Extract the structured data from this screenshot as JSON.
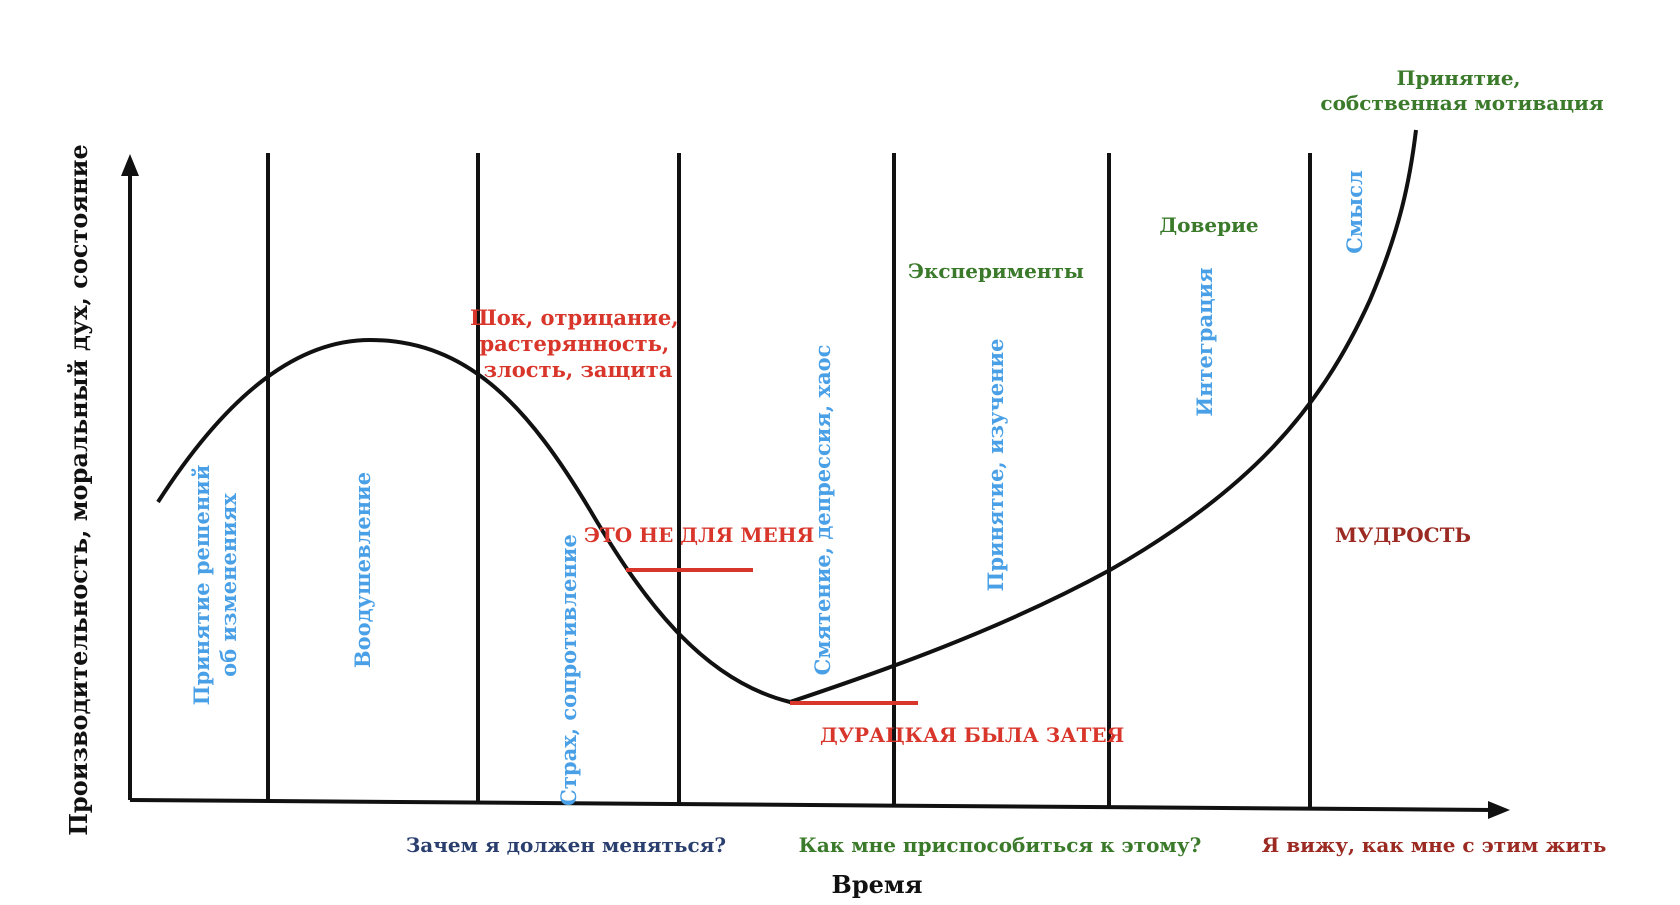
{
  "colors": {
    "blue": "#4aa0e6",
    "green": "#3a7a2a",
    "red": "#d9362b",
    "dark_red": "#9b2a22",
    "navy": "#2a3f6e",
    "line": "#111111"
  },
  "axes": {
    "y_label": "Производительность, моральный дух, состояние",
    "x_label": "Время"
  },
  "stages": [
    "Принятие решений",
    "об изменениях",
    "Воодушевление",
    "Страх, сопротивление",
    "Смятение, депрессия, хаос",
    "Принятие, изучение",
    "Интеграция",
    "Смысл"
  ],
  "feelings": {
    "shock": [
      "Шок, отрицание,",
      "растерянность,",
      "злость, защита"
    ],
    "not_for_me": "ЭТО НЕ ДЛЯ МЕНЯ",
    "silly_idea": "ДУРАЦКАЯ БЫЛА ЗАТЕЯ",
    "experiments": "Эксперименты",
    "trust": "Доверие",
    "acceptance": [
      "Принятие,",
      "собственная мотивация"
    ],
    "wisdom": "МУДРОСТЬ"
  },
  "questions": {
    "why": "Зачем я должен меняться?",
    "how": "Как мне приспособиться к этому?",
    "see": "Я вижу, как мне с этим жить"
  }
}
